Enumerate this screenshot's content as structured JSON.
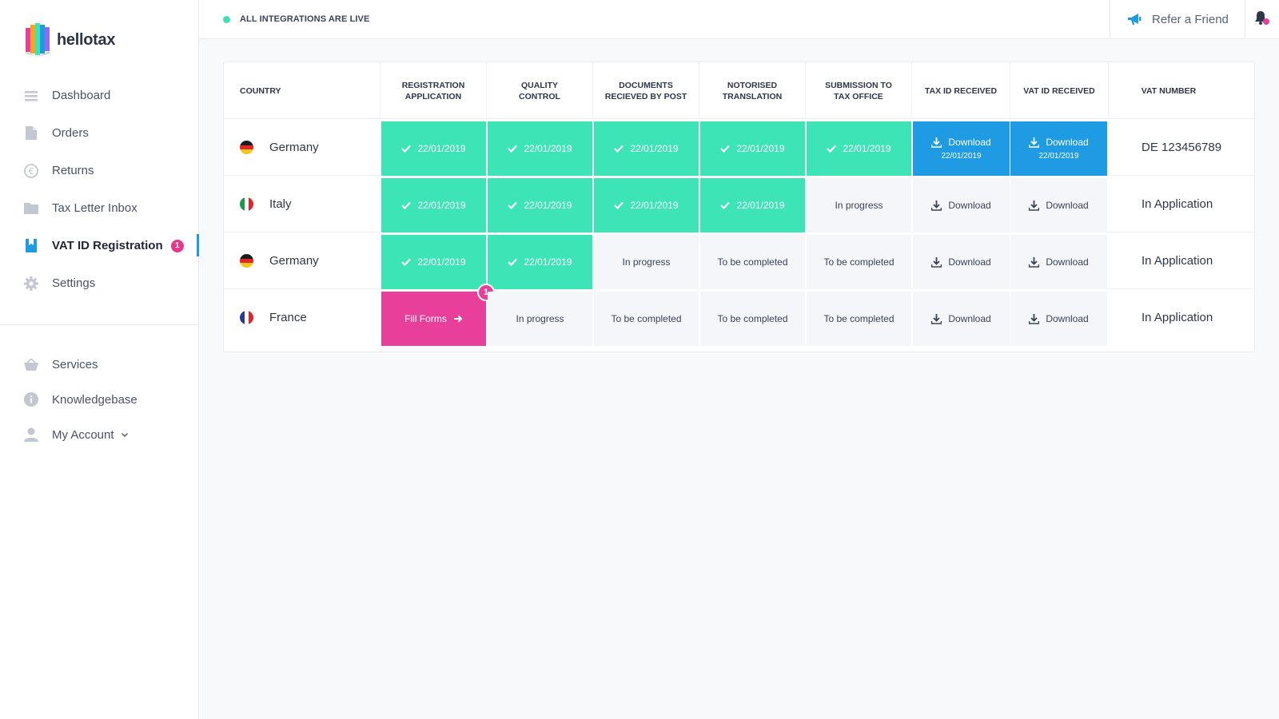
{
  "app": {
    "name": "hellotax"
  },
  "sidebar": {
    "items": [
      {
        "label": "Dashboard",
        "icon": "list-icon"
      },
      {
        "label": "Orders",
        "icon": "document-icon"
      },
      {
        "label": "Returns",
        "icon": "euro-icon"
      },
      {
        "label": "Tax Letter Inbox",
        "icon": "folder-icon"
      },
      {
        "label": "VAT ID Registration",
        "icon": "bookmark-icon",
        "badge": "1",
        "active": true
      },
      {
        "label": "Settings",
        "icon": "gear-icon"
      }
    ],
    "secondary": [
      {
        "label": "Services",
        "icon": "basket-icon"
      },
      {
        "label": "Knowledgebase",
        "icon": "info-icon"
      },
      {
        "label": "My Account",
        "icon": "user-icon"
      }
    ]
  },
  "topbar": {
    "status": "ALL INTEGRATIONS ARE LIVE",
    "refer": "Refer a Friend"
  },
  "table": {
    "headers": [
      "COUNTRY",
      "REGISTRATION\nAPPLICATION",
      "QUALITY\nCONTROL",
      "DOCUMENTS\nRECIEVED BY POST",
      "NOTORISED\nTRANSLATION",
      "SUBMISSION TO\nTAX OFFICE",
      "TAX ID RECEIVED",
      "VAT ID RECEIVED",
      "VAT NUMBER"
    ],
    "rows": [
      {
        "country": "Germany",
        "flag": "de",
        "steps": [
          "22/01/2019",
          "22/01/2019",
          "22/01/2019",
          "22/01/2019",
          "22/01/2019"
        ],
        "tax_id": {
          "label": "Download",
          "date": "22/01/2019"
        },
        "vat_id": {
          "label": "Download",
          "date": "22/01/2019"
        },
        "vat_number": "DE 123456789"
      },
      {
        "country": "Italy",
        "flag": "it",
        "steps": [
          "22/01/2019",
          "22/01/2019",
          "22/01/2019",
          "22/01/2019",
          "In progress"
        ],
        "tax_id": {
          "label": "Download"
        },
        "vat_id": {
          "label": "Download"
        },
        "vat_number": "In Application"
      },
      {
        "country": "Germany",
        "flag": "de",
        "steps": [
          "22/01/2019",
          "22/01/2019",
          "In progress",
          "To be completed",
          "To be completed"
        ],
        "tax_id": {
          "label": "Download"
        },
        "vat_id": {
          "label": "Download"
        },
        "vat_number": "In Application"
      },
      {
        "country": "France",
        "flag": "fr",
        "steps": [
          "Fill Forms",
          "In progress",
          "To be completed",
          "To be completed",
          "To be completed"
        ],
        "fill_badge": "1",
        "tax_id": {
          "label": "Download"
        },
        "vat_id": {
          "label": "Download"
        },
        "vat_number": "In Application"
      }
    ]
  },
  "colors": {
    "done": "#3de4b6",
    "pending": "#f4f6f9",
    "download_ready": "#1e9be3",
    "action": "#e8409a",
    "live_dot": "#3ee0b4"
  }
}
